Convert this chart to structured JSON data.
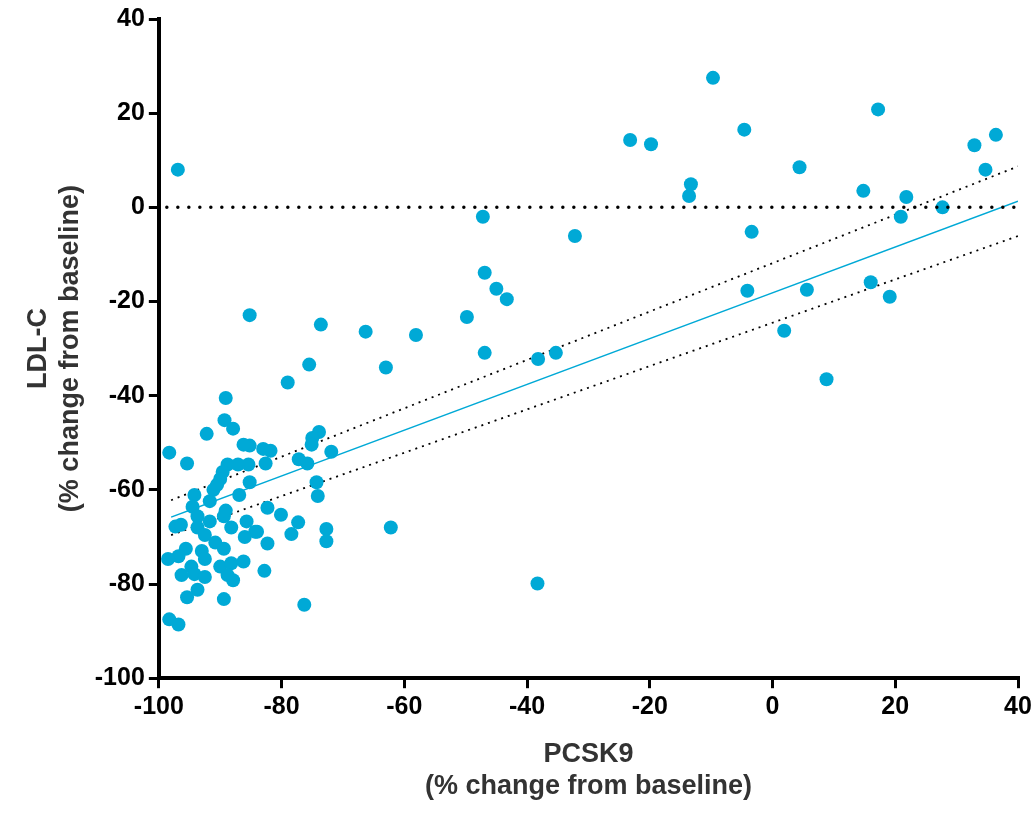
{
  "chart_data": {
    "type": "scatter",
    "xlabel": "PCSK9\n(% change from baseline)",
    "ylabel": "LDL-C\n(% change from baseline)",
    "xlim": [
      -100,
      40
    ],
    "xticks": [
      -100,
      -80,
      -60,
      -40,
      -20,
      0,
      20,
      40
    ],
    "ylim": [
      -100,
      40
    ],
    "yticks": [
      -100,
      -80,
      -60,
      -40,
      -20,
      0,
      20,
      40
    ],
    "grid": false,
    "legend": false,
    "marker": "circle",
    "ref_lines": [
      {
        "axis": "y",
        "value": 0,
        "color": "#000000",
        "line_style": "dotted"
      }
    ],
    "series": [
      {
        "color": "#00a9d6",
        "x": [
          -96.9,
          -47.2,
          -46.9,
          -45.0,
          -43.3,
          -49.8,
          -46.9,
          -38.2,
          -35.3,
          -32.2,
          -23.2,
          -19.8,
          -13.3,
          -13.6,
          -9.7,
          -4.6,
          -3.4,
          -4.1,
          1.9,
          4.4,
          5.6,
          8.8,
          14.8,
          17.2,
          16.0,
          19.1,
          21.8,
          20.9,
          27.7,
          32.9,
          36.4,
          34.7,
          -85.2,
          -73.6,
          -66.3,
          -58.1,
          -75.5,
          -63.0,
          -79.0,
          -62.2,
          -38.3,
          -73.9,
          -75.0,
          -75.1,
          -71.9,
          -77.2,
          -75.8,
          -83.0,
          -81.8,
          -82.6,
          -85.2,
          -85.4,
          -85.2,
          -74.3,
          -74.1,
          -82.3,
          -80.1,
          -77.3,
          -78.4,
          -72.7,
          -72.7,
          -82.3,
          -84.3,
          -89.1,
          -89.3,
          -87.9,
          -92.2,
          -86.2,
          -98.3,
          -95.4,
          -88.8,
          -87.1,
          -89.6,
          -90.0,
          -86.9,
          -91.1,
          -94.2,
          -91.7,
          -94.5,
          -93.7,
          -89.4,
          -91.7,
          -85.7,
          -84.0,
          -97.3,
          -96.4,
          -93.7,
          -88.2,
          -92.5,
          -90.8,
          -86.0,
          -95.6,
          -93.0,
          -96.8,
          -89.4,
          -98.5,
          -94.7,
          -90.0,
          -88.2,
          -86.2,
          -96.3,
          -94.2,
          -92.5,
          -88.8,
          -87.9,
          -82.8,
          -93.7,
          -95.4,
          -89.4,
          -76.3,
          -98.3,
          -96.8,
          -90.5,
          -89.1,
          -92.5
        ],
        "values": [
          8.0,
          -2.0,
          -13.9,
          -17.3,
          -19.5,
          -23.3,
          -30.9,
          -32.2,
          -30.9,
          -6.1,
          14.3,
          13.4,
          4.9,
          2.4,
          27.5,
          16.5,
          -5.2,
          -17.7,
          -26.2,
          8.5,
          -17.5,
          -36.5,
          3.5,
          20.8,
          -15.9,
          -19.0,
          2.2,
          -2.0,
          0.0,
          13.2,
          15.4,
          8.0,
          -22.9,
          -24.9,
          -26.4,
          -27.1,
          -33.4,
          -34.0,
          -37.2,
          -68.0,
          -79.9,
          -47.7,
          -49.0,
          -50.4,
          -51.9,
          -53.5,
          -54.4,
          -51.3,
          -51.7,
          -54.4,
          -50.6,
          -54.6,
          -58.4,
          -58.4,
          -61.3,
          -63.8,
          -65.3,
          -66.9,
          -69.4,
          -68.3,
          -70.9,
          -71.4,
          -68.9,
          -40.5,
          -45.2,
          -47.0,
          -48.1,
          -50.4,
          -52.1,
          -54.4,
          -54.6,
          -54.6,
          -56.2,
          -57.7,
          -61.1,
          -60.0,
          -61.1,
          -62.4,
          -63.6,
          -65.6,
          -65.6,
          -66.7,
          -66.7,
          -68.9,
          -67.8,
          -67.4,
          -68.0,
          -68.0,
          -69.6,
          -71.2,
          -70.0,
          -72.5,
          -73.0,
          -74.1,
          -72.5,
          -74.7,
          -76.3,
          -76.3,
          -75.6,
          -75.2,
          -78.1,
          -77.9,
          -78.5,
          -78.1,
          -79.2,
          -77.2,
          -81.2,
          -82.8,
          -83.2,
          -84.4,
          -87.5,
          -88.6,
          -58.9,
          -64.4,
          -74.7
        ]
      },
      {
        "type": "line",
        "color": "#00a9d6",
        "line_style": "solid",
        "marker": "none",
        "x": [
          -98,
          40
        ],
        "values": [
          -65.8,
          1.3
        ]
      },
      {
        "type": "line",
        "color": "#000000",
        "line_style": "dotted",
        "marker": "none",
        "x": [
          -98,
          40
        ],
        "values": [
          -62.2,
          8.7
        ]
      },
      {
        "type": "line",
        "color": "#000000",
        "line_style": "dotted",
        "marker": "none",
        "x": [
          -98,
          40
        ],
        "values": [
          -69.6,
          -6.1
        ]
      }
    ]
  }
}
